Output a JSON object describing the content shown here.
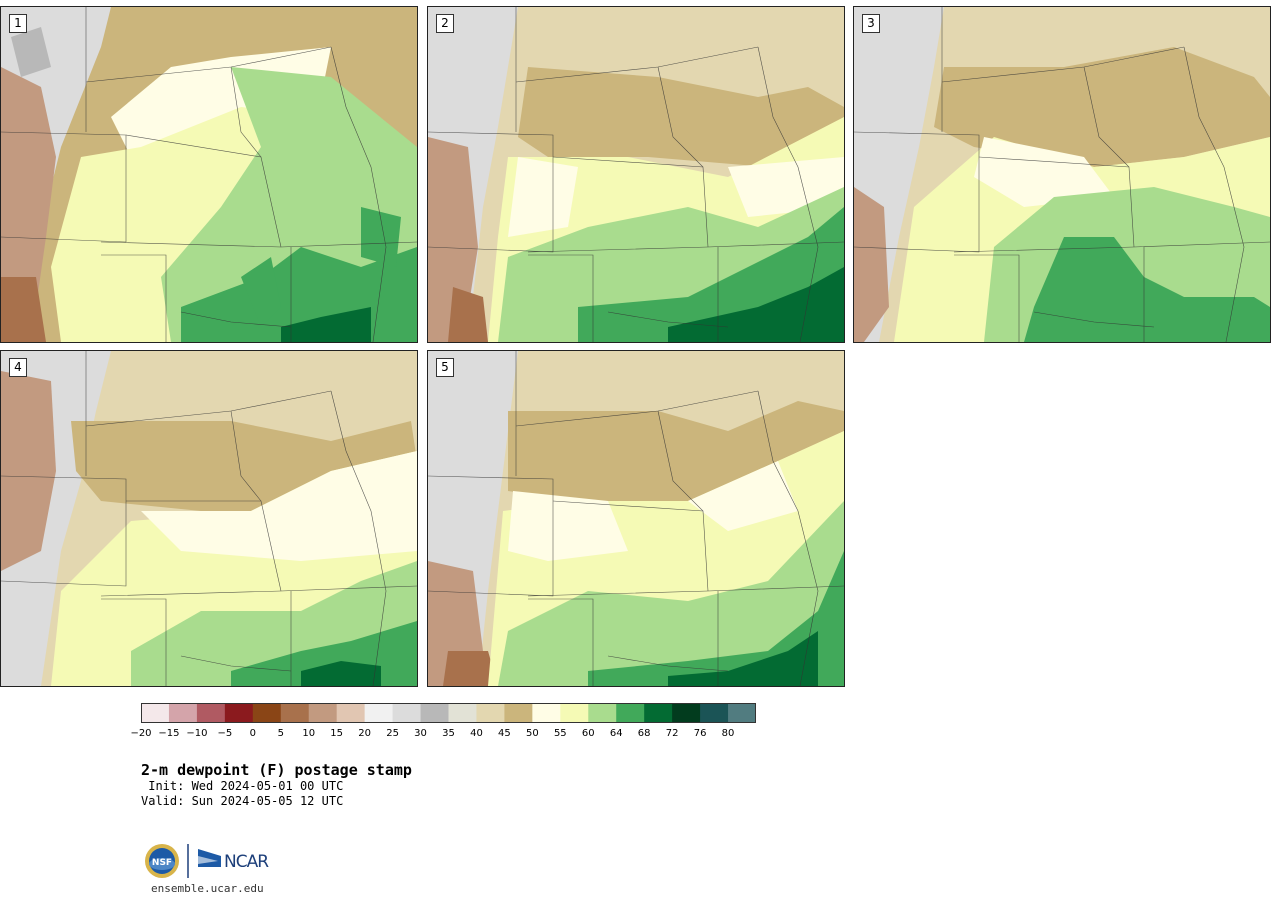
{
  "title": "2-m dewpoint (F) postage stamp",
  "init": " Init: Wed 2024-05-01 00 UTC",
  "valid": "Valid: Sun 2024-05-05 12 UTC",
  "footer_url": "ensemble.ucar.edu",
  "logo_text": {
    "nsf": "NSF",
    "ncar": "NCAR"
  },
  "panels": [
    {
      "label": "1"
    },
    {
      "label": "2"
    },
    {
      "label": "3"
    },
    {
      "label": "4"
    },
    {
      "label": "5"
    }
  ],
  "colorbar": {
    "colors": [
      "#f4e8ea",
      "#d4a4aa",
      "#b05a62",
      "#8b1a1e",
      "#8a4516",
      "#a8714c",
      "#c29a80",
      "#e1c6b2",
      "#f1f1f1",
      "#dcdcdc",
      "#b8b8b8",
      "#e2e2d6",
      "#e3d7b0",
      "#cbb57c",
      "#fffde6",
      "#f5fab5",
      "#a9dc8e",
      "#41a95a",
      "#036b33",
      "#023c1e",
      "#1b5456",
      "#517c80"
    ],
    "tick_labels": [
      "−20",
      "−15",
      "−10",
      "−5",
      "0",
      "5",
      "10",
      "15",
      "20",
      "25",
      "30",
      "35",
      "40",
      "45",
      "50",
      "55",
      "60",
      "64",
      "68",
      "72",
      "76",
      "80"
    ]
  }
}
